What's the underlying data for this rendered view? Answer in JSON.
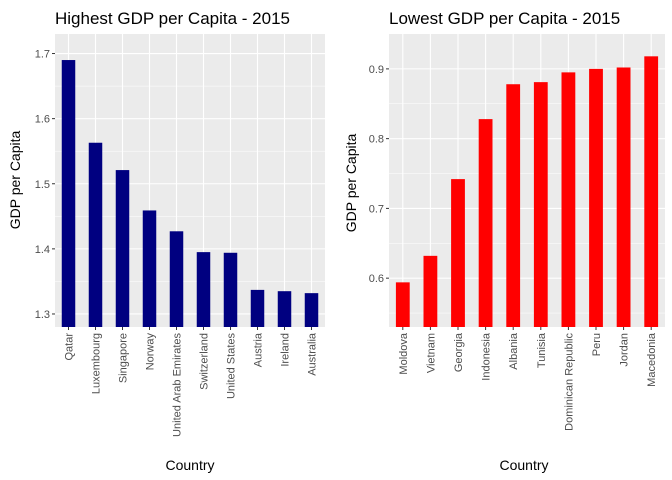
{
  "chart_data": [
    {
      "type": "bar",
      "title": "Highest GDP per Capita - 2015",
      "xlabel": "Country",
      "ylabel": "GDP per Capita",
      "categories": [
        "Qatar",
        "Luxembourg",
        "Singapore",
        "Norway",
        "United Arab Emirates",
        "Switzerland",
        "United States",
        "Austria",
        "Ireland",
        "Australia"
      ],
      "values": [
        1.69,
        1.563,
        1.521,
        1.459,
        1.427,
        1.395,
        1.394,
        1.337,
        1.335,
        1.332
      ],
      "yticks": [
        1.3,
        1.4,
        1.5,
        1.6,
        1.7
      ],
      "ylim": [
        1.28,
        1.73
      ],
      "bar_color": "#000080",
      "grid": true
    },
    {
      "type": "bar",
      "title": "Lowest GDP per Capita - 2015",
      "xlabel": "Country",
      "ylabel": "GDP per Capita",
      "categories": [
        "Moldova",
        "Vietnam",
        "Georgia",
        "Indonesia",
        "Albania",
        "Tunisia",
        "Dominican Republic",
        "Peru",
        "Jordan",
        "Macedonia"
      ],
      "values": [
        0.594,
        0.632,
        0.742,
        0.828,
        0.878,
        0.881,
        0.895,
        0.9,
        0.902,
        0.918
      ],
      "yticks": [
        0.6,
        0.7,
        0.8,
        0.9
      ],
      "ylim": [
        0.53,
        0.95
      ],
      "bar_color": "#ff0000",
      "grid": true
    }
  ]
}
